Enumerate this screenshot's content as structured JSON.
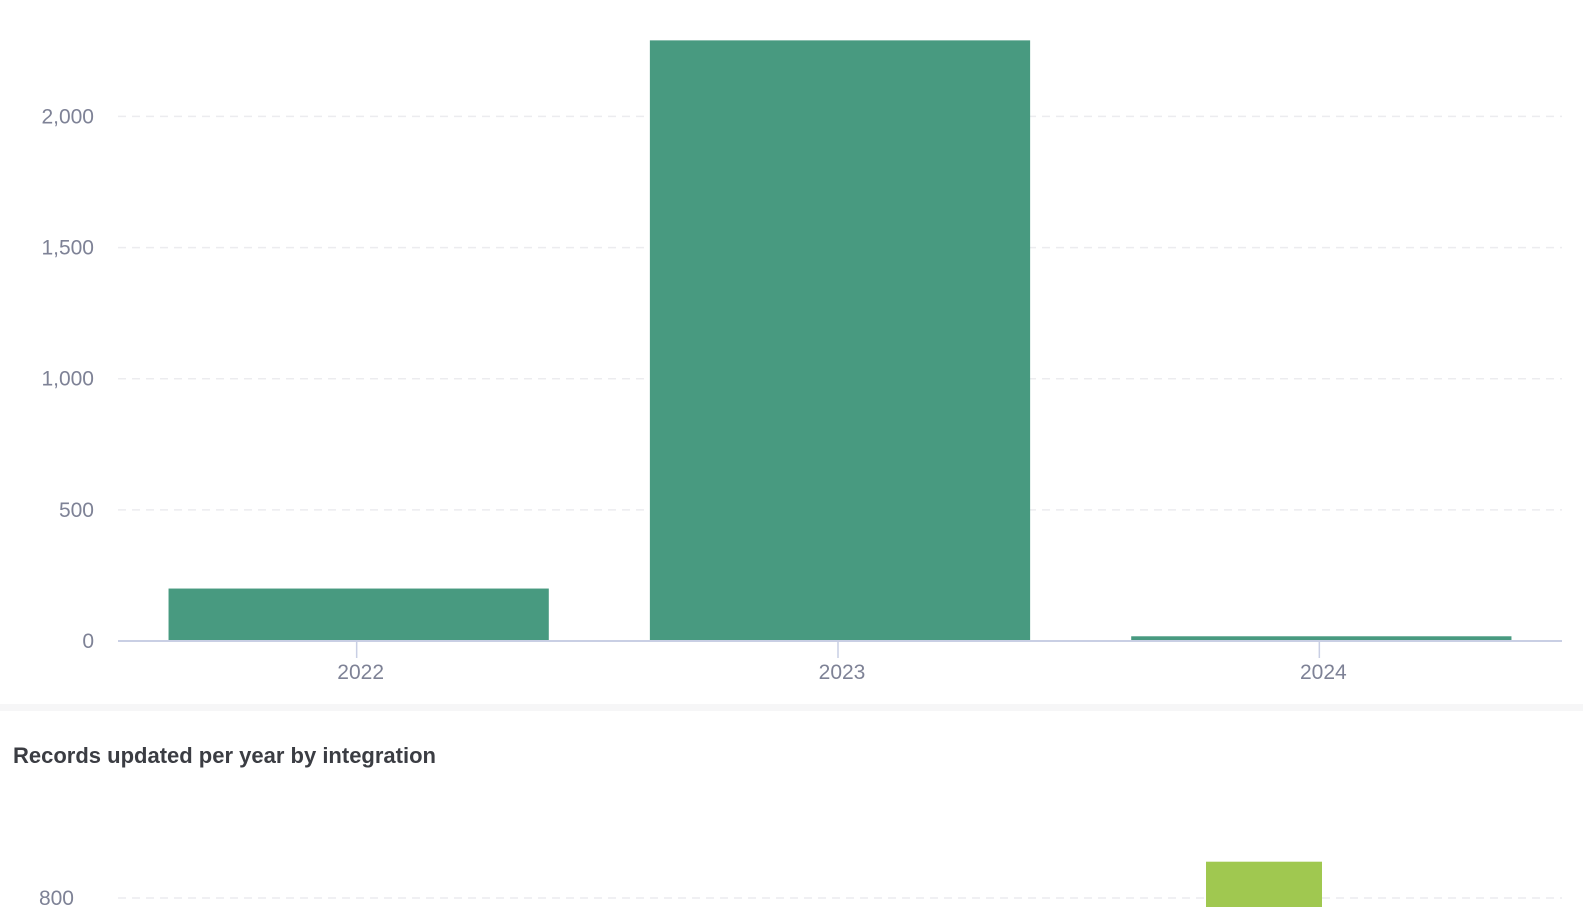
{
  "colors": {
    "bar_primary": "#489a80",
    "bar_secondary": "#a0c850",
    "grid": "#ececef",
    "axis": "#c9cfe4",
    "tick_text": "#7e8296",
    "title_text": "#3b3d43"
  },
  "chart_data": [
    {
      "type": "bar",
      "title": "",
      "xlabel": "",
      "ylabel": "",
      "categories": [
        "2022",
        "2023",
        "2024"
      ],
      "values": [
        200,
        2290,
        18
      ],
      "yticks": [
        0,
        500,
        1000,
        1500,
        2000
      ],
      "ytick_labels": [
        "0",
        "500",
        "1,000",
        "1,500",
        "2,000"
      ],
      "ylim": [
        0,
        2360
      ],
      "grid": true,
      "grid_style": "dashed",
      "legend": "none"
    },
    {
      "type": "bar",
      "title": "Records updated per year by integration",
      "xlabel": "",
      "ylabel": "",
      "partially_visible": true,
      "yticks": [
        800
      ],
      "ytick_labels": [
        "800"
      ],
      "visible_bar_min_value": 815,
      "grid": true,
      "legend": "none"
    }
  ]
}
